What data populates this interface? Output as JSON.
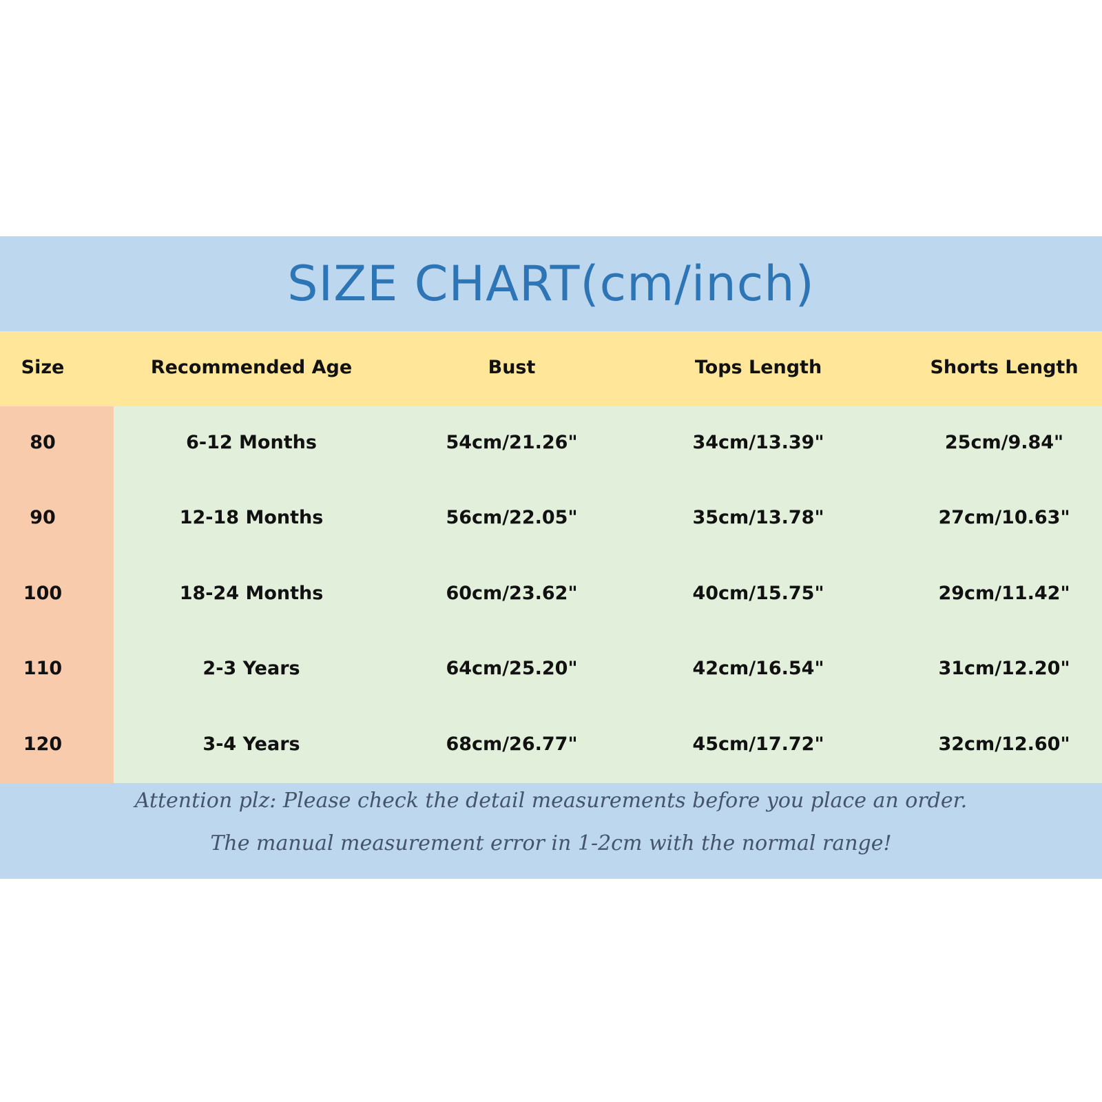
{
  "title": "SIZE CHART(cm/inch)",
  "columns": [
    "Size",
    "Recommended Age",
    "Bust",
    "Tops Length",
    "Shorts Length"
  ],
  "rows": [
    [
      "80",
      "6-12 Months",
      "54cm/21.26\"",
      "34cm/13.39\"",
      "25cm/9.84\""
    ],
    [
      "90",
      "12-18 Months",
      "56cm/22.05\"",
      "35cm/13.78\"",
      "27cm/10.63\""
    ],
    [
      "100",
      "18-24 Months",
      "60cm/23.62\"",
      "40cm/15.75\"",
      "29cm/11.42\""
    ],
    [
      "110",
      "2-3 Years",
      "64cm/25.20\"",
      "42cm/16.54\"",
      "31cm/12.20\""
    ],
    [
      "120",
      "3-4 Years",
      "68cm/26.77\"",
      "45cm/17.72\"",
      "32cm/12.60\""
    ]
  ],
  "notes": [
    "Attention plz:  Please check the detail measurements before you place an order.",
    "The manual measurement error in 1-2cm with the normal range!"
  ],
  "colors": {
    "title_band": "#bdd7ee",
    "header": "#ffe699",
    "size_column": "#f8cbad",
    "body": "#e2efda",
    "title_text": "#2e75b6"
  }
}
